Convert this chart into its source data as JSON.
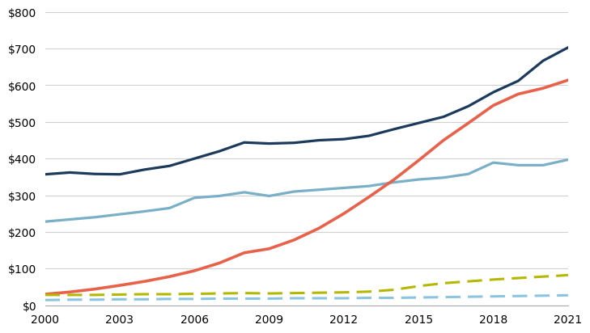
{
  "years": [
    2000,
    2001,
    2002,
    2003,
    2004,
    2005,
    2006,
    2007,
    2008,
    2009,
    2010,
    2011,
    2012,
    2013,
    2014,
    2015,
    2016,
    2017,
    2018,
    2019,
    2020,
    2021
  ],
  "series": {
    "dark_blue": [
      357,
      362,
      358,
      357,
      370,
      380,
      400,
      420,
      444,
      441,
      443,
      450,
      453,
      462,
      480,
      497,
      514,
      543,
      581,
      612,
      667,
      703
    ],
    "steel_blue": [
      228,
      234,
      240,
      248,
      256,
      265,
      293,
      298,
      308,
      298,
      310,
      315,
      320,
      325,
      335,
      343,
      348,
      358,
      389,
      382,
      382,
      397
    ],
    "salmon": [
      30,
      36,
      44,
      54,
      65,
      78,
      94,
      115,
      143,
      154,
      178,
      210,
      250,
      295,
      342,
      395,
      450,
      497,
      545,
      576,
      592,
      614
    ],
    "olive_dashed": [
      28,
      28,
      28,
      29,
      30,
      30,
      31,
      32,
      33,
      32,
      33,
      34,
      35,
      37,
      42,
      52,
      60,
      65,
      70,
      74,
      78,
      82
    ],
    "light_blue_dashed": [
      14,
      15,
      15,
      16,
      16,
      17,
      17,
      18,
      18,
      18,
      19,
      19,
      19,
      20,
      20,
      21,
      22,
      23,
      24,
      25,
      26,
      27
    ]
  },
  "colors": {
    "dark_blue": "#1b3a5c",
    "steel_blue": "#7aafc8",
    "salmon": "#e8614a",
    "olive_dashed": "#b5b800",
    "light_blue_dashed": "#8ac4e0"
  },
  "ylim": [
    0,
    800
  ],
  "yticks": [
    0,
    100,
    200,
    300,
    400,
    500,
    600,
    700,
    800
  ],
  "xticks": [
    2000,
    2003,
    2006,
    2009,
    2012,
    2015,
    2018,
    2021
  ],
  "grid_color": "#d0d0d0",
  "background_color": "#ffffff",
  "linewidth_solid": 2.3,
  "linewidth_dashed": 2.2
}
